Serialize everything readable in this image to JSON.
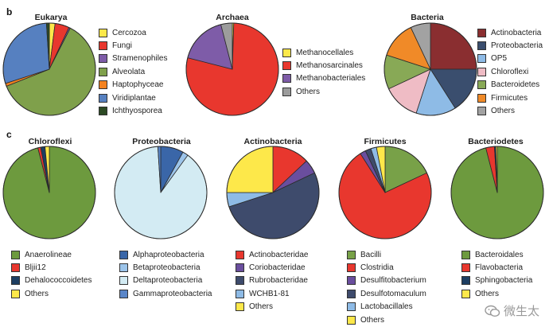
{
  "panel_labels": {
    "b": "b",
    "c": "c"
  },
  "watermark": {
    "text": "微生太",
    "icon": "wechat-icon"
  },
  "chart_data": [
    {
      "id": "eukarya",
      "type": "pie",
      "title": "Eukarya",
      "panel": "b",
      "slices": [
        {
          "label": "Cercozoa",
          "value": 2,
          "color": "#fde84a"
        },
        {
          "label": "Fungi",
          "value": 5,
          "color": "#e8372e"
        },
        {
          "label": "Stramenophiles",
          "value": 0.5,
          "color": "#7e5ca8"
        },
        {
          "label": "Alveolata",
          "value": 61.5,
          "color": "#7fa04b"
        },
        {
          "label": "Haptophyceae",
          "value": 1,
          "color": "#f48220"
        },
        {
          "label": "Viridiplantae",
          "value": 29,
          "color": "#5680c0"
        },
        {
          "label": "Ichthyosporea",
          "value": 1,
          "color": "#2c4a24"
        }
      ]
    },
    {
      "id": "archaea",
      "type": "pie",
      "title": "Archaea",
      "panel": "b",
      "slices": [
        {
          "label": "Methanocellales",
          "value": 0.5,
          "color": "#fde84a"
        },
        {
          "label": "Methanosarcinales",
          "value": 78.5,
          "color": "#e8372e"
        },
        {
          "label": "Methanobacteriales",
          "value": 17,
          "color": "#7e5ca8"
        },
        {
          "label": "Others",
          "value": 4,
          "color": "#9c9c9c"
        }
      ]
    },
    {
      "id": "bacteria",
      "type": "pie",
      "title": "Bacteria",
      "panel": "b",
      "slices": [
        {
          "label": "Actinobacteria",
          "value": 25,
          "color": "#8a2e30"
        },
        {
          "label": "Proteobacteria",
          "value": 16,
          "color": "#3a4e6e"
        },
        {
          "label": "OP5",
          "value": 14,
          "color": "#8ebbe6"
        },
        {
          "label": "Chloroflexi",
          "value": 13,
          "color": "#efbcc5"
        },
        {
          "label": "Bacteroidetes",
          "value": 12,
          "color": "#88a956"
        },
        {
          "label": "Firmicutes",
          "value": 13,
          "color": "#f08a28"
        },
        {
          "label": "Others",
          "value": 7,
          "color": "#a2a2a2"
        }
      ]
    },
    {
      "id": "chloroflexi",
      "type": "pie",
      "title": "Chloroflexi",
      "panel": "c",
      "slices": [
        {
          "label": "Anaerolineae",
          "value": 96,
          "color": "#6d9a3e"
        },
        {
          "label": "Bljii12",
          "value": 1,
          "color": "#e8372e"
        },
        {
          "label": "Dehalococcoidetes",
          "value": 1.5,
          "color": "#1d3e62"
        },
        {
          "label": "Others",
          "value": 1.5,
          "color": "#fde84a"
        }
      ]
    },
    {
      "id": "proteobacteria",
      "type": "pie",
      "title": "Proteobacteria",
      "panel": "c",
      "slices": [
        {
          "label": "Alphaproteobacteria",
          "value": 8,
          "color": "#3a66a8"
        },
        {
          "label": "Betaproteobacteria",
          "value": 2,
          "color": "#9cc4ea"
        },
        {
          "label": "Deltaproteobacteria",
          "value": 89,
          "color": "#d3ebf3"
        },
        {
          "label": "Gammaproteobacteria",
          "value": 1,
          "color": "#5a86c8"
        }
      ]
    },
    {
      "id": "actinobacteria",
      "type": "pie",
      "title": "Actinobacteria",
      "panel": "c",
      "slices": [
        {
          "label": "Actinobacteridae",
          "value": 13,
          "color": "#e8372e"
        },
        {
          "label": "Coriobacteridae",
          "value": 5,
          "color": "#6a4e9e"
        },
        {
          "label": "Rubrobacteridae",
          "value": 52,
          "color": "#3e4b6c"
        },
        {
          "label": "WCHB1-81",
          "value": 5,
          "color": "#8ebbe6"
        },
        {
          "label": "Others",
          "value": 25,
          "color": "#fde84a"
        }
      ]
    },
    {
      "id": "firmicutes",
      "type": "pie",
      "title": "Firmicutes",
      "panel": "c",
      "slices": [
        {
          "label": "Bacilli",
          "value": 18,
          "color": "#78a148"
        },
        {
          "label": "Clostridia",
          "value": 73,
          "color": "#e8372e"
        },
        {
          "label": "Desulfitobacterium",
          "value": 2,
          "color": "#6a4e9e"
        },
        {
          "label": "Desulfotomaculum",
          "value": 2,
          "color": "#3e4b6c"
        },
        {
          "label": "Lactobacillales",
          "value": 2,
          "color": "#8ebbe6"
        },
        {
          "label": "Others",
          "value": 3,
          "color": "#fde84a"
        }
      ]
    },
    {
      "id": "bacteriodetes",
      "type": "pie",
      "title": "Bacteriodetes",
      "panel": "c",
      "slices": [
        {
          "label": "Bacteroidales",
          "value": 96,
          "color": "#6d9a3e"
        },
        {
          "label": "Flavobacteria",
          "value": 3,
          "color": "#e8372e"
        },
        {
          "label": "Sphingobacteria",
          "value": 0.5,
          "color": "#1d3e62"
        },
        {
          "label": "Others",
          "value": 0.5,
          "color": "#fde84a"
        }
      ]
    }
  ]
}
